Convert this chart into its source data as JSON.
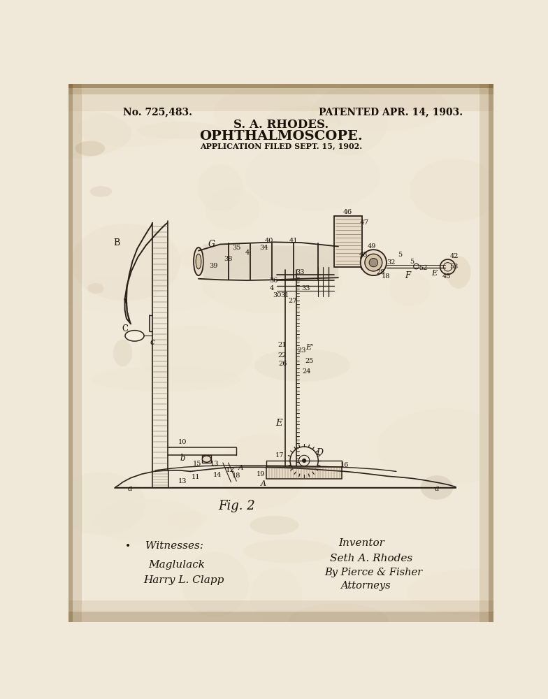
{
  "bg_color": "#f0e8d8",
  "paper_light": "#f5ede0",
  "paper_mid": "#e8dcc8",
  "paper_dark": "#d4c4a8",
  "line_color": "#2a2018",
  "text_color": "#1a1008",
  "stain_color": "#8b6914",
  "title": "S. A. RHODES.",
  "subtitle": "OPHTHALMOSCOPE.",
  "application": "APPLICATION FILED SEPT. 15, 1902.",
  "patent_no": "No. 725,483.",
  "patent_date": "PATENTED APR. 14, 1903.",
  "fig_label": "Fig. 2",
  "witnesses_label": "Witnesses:",
  "witness1": "Maglulack",
  "witness2": "Harry L. Clapp",
  "inventor_label": "Inventor",
  "inventor_name": "Seth A. Rhodes",
  "attorney_by": "By Pierce & Fisher",
  "attorney_label": "Attorneys",
  "figsize": [
    7.84,
    10.0
  ],
  "dpi": 100
}
